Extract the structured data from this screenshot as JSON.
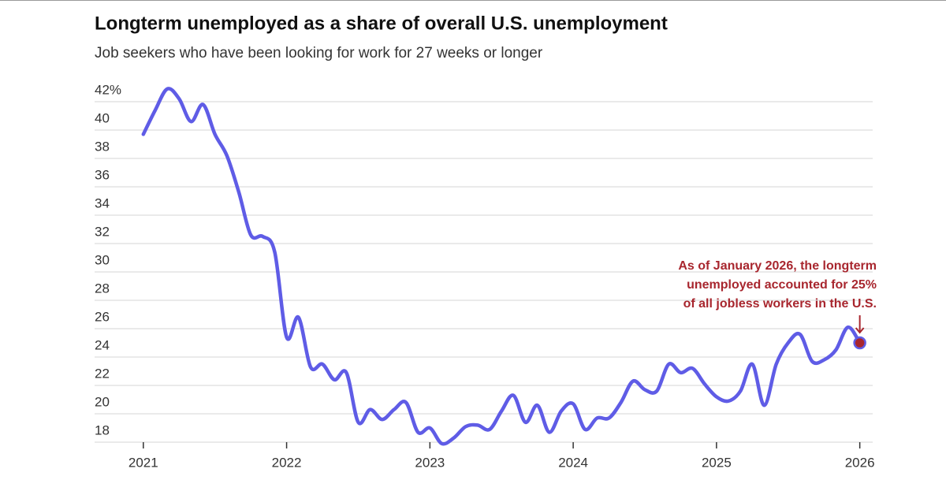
{
  "chart_data": {
    "type": "line",
    "title": "Longterm unemployed as a share of overall U.S. unemployment",
    "subtitle": "Job seekers who have been looking for work for 27 weeks or longer",
    "x": [
      2021,
      2021.083,
      2021.167,
      2021.25,
      2021.333,
      2021.417,
      2021.5,
      2021.583,
      2021.667,
      2021.75,
      2021.833,
      2021.917,
      2022,
      2022.083,
      2022.167,
      2022.25,
      2022.333,
      2022.417,
      2022.5,
      2022.583,
      2022.667,
      2022.75,
      2022.833,
      2022.917,
      2023,
      2023.083,
      2023.167,
      2023.25,
      2023.333,
      2023.417,
      2023.5,
      2023.583,
      2023.667,
      2023.75,
      2023.833,
      2023.917,
      2024,
      2024.083,
      2024.167,
      2024.25,
      2024.333,
      2024.417,
      2024.5,
      2024.583,
      2024.667,
      2024.75,
      2024.833,
      2024.917,
      2025,
      2025.083,
      2025.167,
      2025.25,
      2025.333,
      2025.417,
      2025.5,
      2025.583,
      2025.667,
      2025.75,
      2025.833,
      2025.917,
      2026
    ],
    "series": [
      {
        "name": "Longterm unemployed share",
        "color": "#5f5ce6",
        "values": [
          39.7,
          41.4,
          42.9,
          42.2,
          40.6,
          41.8,
          39.7,
          38.2,
          35.6,
          32.6,
          32.5,
          31.4,
          25.4,
          26.8,
          23.3,
          23.5,
          22.4,
          22.9,
          19.4,
          20.3,
          19.6,
          20.3,
          20.8,
          18.7,
          19.0,
          17.9,
          18.3,
          19.1,
          19.2,
          18.9,
          20.2,
          21.3,
          19.4,
          20.6,
          18.7,
          20.2,
          20.7,
          18.9,
          19.7,
          19.7,
          20.8,
          22.3,
          21.7,
          21.6,
          23.5,
          22.9,
          23.2,
          22.1,
          21.2,
          20.9,
          21.6,
          23.5,
          20.6,
          23.5,
          25.0,
          25.6,
          23.7,
          23.8,
          24.5,
          26.1,
          25.0
        ]
      }
    ],
    "xlim": [
      2020.66,
      2026.09
    ],
    "xticks": [
      2021,
      2022,
      2023,
      2024,
      2025,
      2026
    ],
    "ylim": [
      18,
      43.5
    ],
    "yticks": [
      {
        "value": 42,
        "label": "42%"
      },
      40,
      38,
      36,
      34,
      32,
      30,
      28,
      26,
      24,
      22,
      20,
      18
    ],
    "grid": true,
    "annotation": {
      "lines": [
        "As of January 2026, the longterm",
        "unemployed accounted for 25%",
        "of all jobless workers in the U.S."
      ],
      "color": "#a8262e"
    }
  }
}
